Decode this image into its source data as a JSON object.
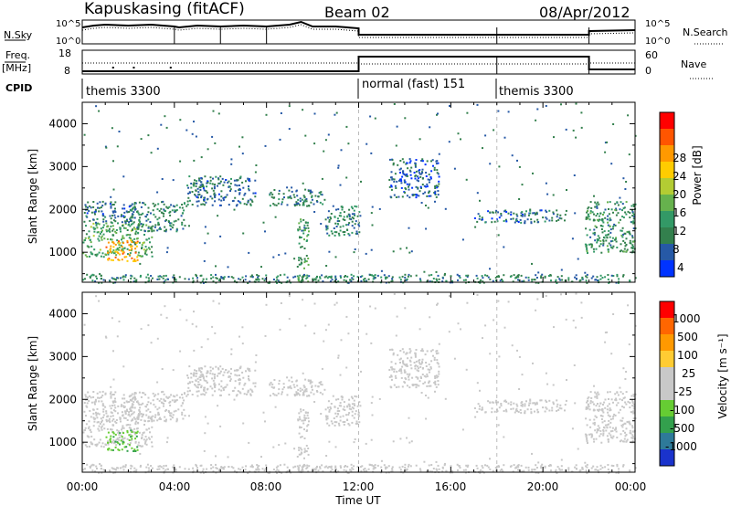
{
  "header": {
    "station": "Kapuskasing (fitACF)",
    "beam": "Beam 02",
    "date": "08/Apr/2012"
  },
  "status_panels": {
    "nsky_label": "N.Sky",
    "nsearch_label": "N.Search",
    "freq_label": "Freq.",
    "freq_unit": "[MHz]",
    "nave_label": "Nave",
    "cpid_label": "CPID",
    "nsky_ticks": [
      "10^5",
      "10^0"
    ],
    "nsearch_ticks": [
      "10^5",
      "10^0"
    ],
    "freq_ticks": [
      "18",
      "8"
    ],
    "nave_ticks": [
      "60",
      "0"
    ],
    "cpid_segments": [
      {
        "label": "themis 3300",
        "start_hour": 0
      },
      {
        "label": "normal (fast) 151",
        "start_hour": 12
      },
      {
        "label": "themis 3300",
        "start_hour": 18
      }
    ]
  },
  "x_axis": {
    "label": "Time UT",
    "ticks": [
      "00:00",
      "04:00",
      "08:00",
      "12:00",
      "16:00",
      "20:00",
      "00:00"
    ],
    "range_hours": [
      0,
      24
    ]
  },
  "power_panel": {
    "ylabel": "Slant Range [km]",
    "yticks": [
      "4000",
      "3000",
      "2000",
      "1000"
    ],
    "colorbar_label": "Power [dB]",
    "colorbar_ticks": [
      "28",
      "24",
      "20",
      "16",
      "12",
      "8",
      "4"
    ],
    "colors": [
      "#0033ff",
      "#2659a6",
      "#33804d",
      "#339966",
      "#66b24d",
      "#b3cc33",
      "#ffcc00",
      "#ff9900",
      "#ff5500",
      "#ff0000"
    ]
  },
  "velocity_panel": {
    "ylabel": "Slant Range [km]",
    "yticks": [
      "4000",
      "3000",
      "2000",
      "1000"
    ],
    "colorbar_label": "Velocity [m s⁻¹]",
    "colorbar_ticks": [
      "1000",
      "500",
      "100",
      "25",
      "-25",
      "-100",
      "-500",
      "-1000"
    ],
    "colors": [
      "#1a33cc",
      "#2e7a99",
      "#33a04d",
      "#66cc33",
      "#c8c8c8",
      "#c8c8c8",
      "#ffcc33",
      "#ff9900",
      "#ff6600",
      "#ff0000"
    ]
  },
  "chart_data": {
    "type": "heatmap",
    "x": "time (hours UT)",
    "xlim": [
      0,
      24
    ],
    "ylim": [
      300,
      4500
    ],
    "panels": [
      "Power [dB]",
      "Velocity [m s⁻¹]"
    ],
    "power_colorbar_range": [
      0,
      30
    ],
    "velocity_colorbar_range": [
      -1200,
      1200
    ],
    "echo_regions": [
      {
        "t": [
          0.0,
          3.0
        ],
        "r": [
          900,
          1700
        ],
        "power": 12,
        "velocity": 0
      },
      {
        "t": [
          1.0,
          2.4
        ],
        "r": [
          800,
          1300
        ],
        "power": 22,
        "velocity": -400
      },
      {
        "t": [
          0.0,
          2.2
        ],
        "r": [
          1700,
          2200
        ],
        "power": 6,
        "velocity": 0
      },
      {
        "t": [
          2.0,
          4.5
        ],
        "r": [
          1500,
          2200
        ],
        "power": 8,
        "velocity": 0
      },
      {
        "t": [
          4.5,
          7.5
        ],
        "r": [
          2100,
          2800
        ],
        "power": 6,
        "velocity": 0
      },
      {
        "t": [
          8.0,
          10.5
        ],
        "r": [
          2100,
          2500
        ],
        "power": 7,
        "velocity": 0
      },
      {
        "t": [
          10.5,
          12.0
        ],
        "r": [
          1400,
          2100
        ],
        "power": 8,
        "velocity": 0
      },
      {
        "t": [
          9.3,
          9.8
        ],
        "r": [
          300,
          1800
        ],
        "power": 10,
        "velocity": 0
      },
      {
        "t": [
          13.3,
          15.5
        ],
        "r": [
          2300,
          3200
        ],
        "power": 5,
        "velocity": 0
      },
      {
        "t": [
          17.0,
          21.0
        ],
        "r": [
          1700,
          2000
        ],
        "power": 6,
        "velocity": 0
      },
      {
        "t": [
          21.8,
          24.0
        ],
        "r": [
          1000,
          2200
        ],
        "power": 9,
        "velocity": 0
      },
      {
        "t": [
          0.0,
          24.0
        ],
        "r": [
          300,
          500
        ],
        "power": 8,
        "velocity": 0
      }
    ]
  }
}
